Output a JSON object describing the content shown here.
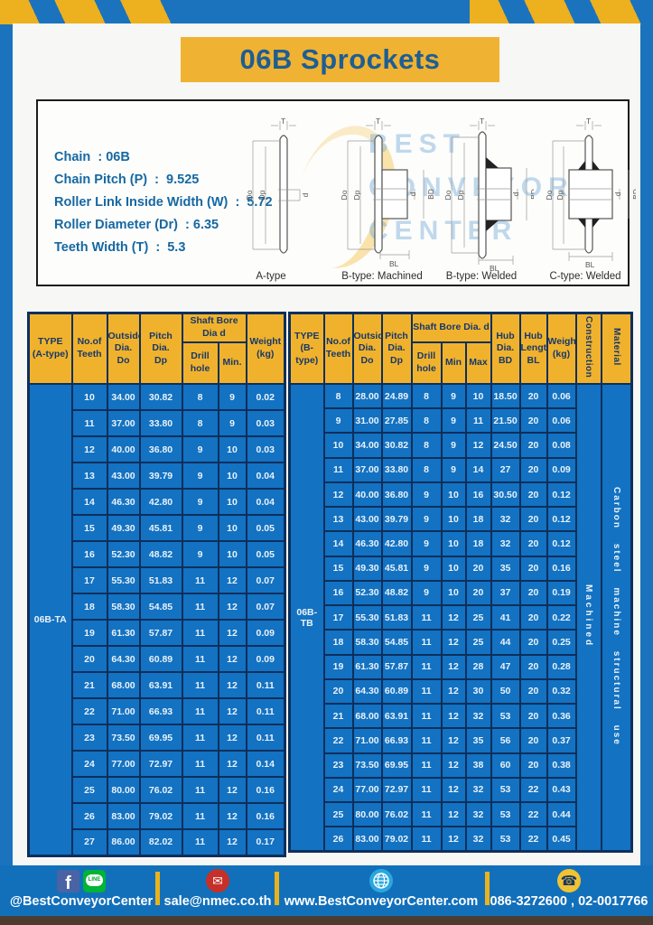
{
  "page": {
    "title": "06B Sprockets"
  },
  "specs": {
    "lines": [
      "Chain  : 06B",
      "Chain Pitch (P)  :  9.525",
      "Roller Link Inside Width (W)  :  5.72",
      "Roller Diameter (Dr)  : 6.35",
      "Teeth Width (T)  :  5.3"
    ]
  },
  "drawings": {
    "captions": [
      "A-type",
      "B-type: Machined",
      "B-type: Welded",
      "C-type: Welded"
    ],
    "labels": {
      "T": "T",
      "Do": "Do",
      "Dp": "Dp",
      "d": "d",
      "BD": "BD",
      "BL": "BL"
    }
  },
  "watermark": {
    "lines": [
      "BEST",
      "CONVEYOR",
      "CENTER"
    ]
  },
  "left_table": {
    "type_label": "06B-TA",
    "headers": {
      "type_l1": "TYPE",
      "type_l2": "(A-type)",
      "teeth_l1": "No.of",
      "teeth_l2": "Teeth",
      "outside_l1": "Outside",
      "outside_l2": "Dia.",
      "outside_l3": "Do",
      "pitch_l1": "Pitch Dia.",
      "pitch_l2": "Dp",
      "shaft_span": "Shaft Bore Dia d",
      "drill": "Drill hole",
      "min": "Min.",
      "weight_l1": "Weight",
      "weight_l2": "(kg)"
    },
    "rows": [
      [
        "10",
        "34.00",
        "30.82",
        "8",
        "9",
        "0.02"
      ],
      [
        "11",
        "37.00",
        "33.80",
        "8",
        "9",
        "0.03"
      ],
      [
        "12",
        "40.00",
        "36.80",
        "9",
        "10",
        "0.03"
      ],
      [
        "13",
        "43.00",
        "39.79",
        "9",
        "10",
        "0.04"
      ],
      [
        "14",
        "46.30",
        "42.80",
        "9",
        "10",
        "0.04"
      ],
      [
        "15",
        "49.30",
        "45.81",
        "9",
        "10",
        "0.05"
      ],
      [
        "16",
        "52.30",
        "48.82",
        "9",
        "10",
        "0.05"
      ],
      [
        "17",
        "55.30",
        "51.83",
        "11",
        "12",
        "0.07"
      ],
      [
        "18",
        "58.30",
        "54.85",
        "11",
        "12",
        "0.07"
      ],
      [
        "19",
        "61.30",
        "57.87",
        "11",
        "12",
        "0.09"
      ],
      [
        "20",
        "64.30",
        "60.89",
        "11",
        "12",
        "0.09"
      ],
      [
        "21",
        "68.00",
        "63.91",
        "11",
        "12",
        "0.11"
      ],
      [
        "22",
        "71.00",
        "66.93",
        "11",
        "12",
        "0.11"
      ],
      [
        "23",
        "73.50",
        "69.95",
        "11",
        "12",
        "0.11"
      ],
      [
        "24",
        "77.00",
        "72.97",
        "11",
        "12",
        "0.14"
      ],
      [
        "25",
        "80.00",
        "76.02",
        "11",
        "12",
        "0.16"
      ],
      [
        "26",
        "83.00",
        "79.02",
        "11",
        "12",
        "0.16"
      ],
      [
        "27",
        "86.00",
        "82.02",
        "11",
        "12",
        "0.17"
      ]
    ]
  },
  "right_table": {
    "type_label": "06B-TB",
    "construction": "Machined",
    "material": "Carbon steel machine structural use",
    "headers": {
      "type_l1": "TYPE",
      "type_l2": "(B-type)",
      "teeth_l1": "No.of",
      "teeth_l2": "Teeth",
      "outside_l1": "Outside",
      "outside_l2": "Dia.",
      "outside_l3": "Do",
      "pitch_l1": "Pitch",
      "pitch_l2": "Dia.",
      "pitch_l3": "Dp",
      "shaft_span": "Shaft Bore Dia.  d",
      "drill": "Drill hole",
      "min": "Min",
      "max": "Max",
      "hubdia_l1": "Hub",
      "hubdia_l2": "Dia.",
      "hubdia_l3": "BD",
      "hublen_l1": "Hub",
      "hublen_l2": "Length",
      "hublen_l3": "BL",
      "weight_l1": "Weight",
      "weight_l2": "(kg)",
      "construction": "Construction",
      "material": "Material"
    },
    "rows": [
      [
        "8",
        "28.00",
        "24.89",
        "8",
        "9",
        "10",
        "18.50",
        "20",
        "0.06"
      ],
      [
        "9",
        "31.00",
        "27.85",
        "8",
        "9",
        "11",
        "21.50",
        "20",
        "0.06"
      ],
      [
        "10",
        "34.00",
        "30.82",
        "8",
        "9",
        "12",
        "24.50",
        "20",
        "0.08"
      ],
      [
        "11",
        "37.00",
        "33.80",
        "8",
        "9",
        "14",
        "27",
        "20",
        "0.09"
      ],
      [
        "12",
        "40.00",
        "36.80",
        "9",
        "10",
        "16",
        "30.50",
        "20",
        "0.12"
      ],
      [
        "13",
        "43.00",
        "39.79",
        "9",
        "10",
        "18",
        "32",
        "20",
        "0.12"
      ],
      [
        "14",
        "46.30",
        "42.80",
        "9",
        "10",
        "18",
        "32",
        "20",
        "0.12"
      ],
      [
        "15",
        "49.30",
        "45.81",
        "9",
        "10",
        "20",
        "35",
        "20",
        "0.16"
      ],
      [
        "16",
        "52.30",
        "48.82",
        "9",
        "10",
        "20",
        "37",
        "20",
        "0.19"
      ],
      [
        "17",
        "55.30",
        "51.83",
        "11",
        "12",
        "25",
        "41",
        "20",
        "0.22"
      ],
      [
        "18",
        "58.30",
        "54.85",
        "11",
        "12",
        "25",
        "44",
        "20",
        "0.25"
      ],
      [
        "19",
        "61.30",
        "57.87",
        "11",
        "12",
        "28",
        "47",
        "20",
        "0.28"
      ],
      [
        "20",
        "64.30",
        "60.89",
        "11",
        "12",
        "30",
        "50",
        "20",
        "0.32"
      ],
      [
        "21",
        "68.00",
        "63.91",
        "11",
        "12",
        "32",
        "53",
        "20",
        "0.36"
      ],
      [
        "22",
        "71.00",
        "66.93",
        "11",
        "12",
        "35",
        "56",
        "20",
        "0.37"
      ],
      [
        "23",
        "73.50",
        "69.95",
        "11",
        "12",
        "38",
        "60",
        "20",
        "0.38"
      ],
      [
        "24",
        "77.00",
        "72.97",
        "11",
        "12",
        "32",
        "53",
        "22",
        "0.43"
      ],
      [
        "25",
        "80.00",
        "76.02",
        "11",
        "12",
        "32",
        "53",
        "22",
        "0.44"
      ],
      [
        "26",
        "83.00",
        "79.02",
        "11",
        "12",
        "32",
        "53",
        "22",
        "0.45"
      ]
    ]
  },
  "footer": {
    "social": "@BestConveyorCenter",
    "email": "sale@nmec.co.th",
    "website": "www.BestConveyorCenter.com",
    "phone": "086-3272600 , 02-0017766",
    "line_label": "LINE",
    "fb_letter": "f",
    "mail_glyph": "✉",
    "phone_glyph": "☎"
  },
  "colors": {
    "frame_blue": "#1b73bd",
    "stripe_yellow": "#edb01f",
    "title_bg": "#f0b232",
    "title_text": "#1d5e93",
    "header_bg": "#f0b22c",
    "header_text": "#17386b",
    "cell_bg": "#1372c2",
    "grid": "#0d2f5c",
    "spec_text": "#1668a2",
    "footer_divider": "#e8b31c",
    "bottom_strip": "#4c3c32"
  }
}
